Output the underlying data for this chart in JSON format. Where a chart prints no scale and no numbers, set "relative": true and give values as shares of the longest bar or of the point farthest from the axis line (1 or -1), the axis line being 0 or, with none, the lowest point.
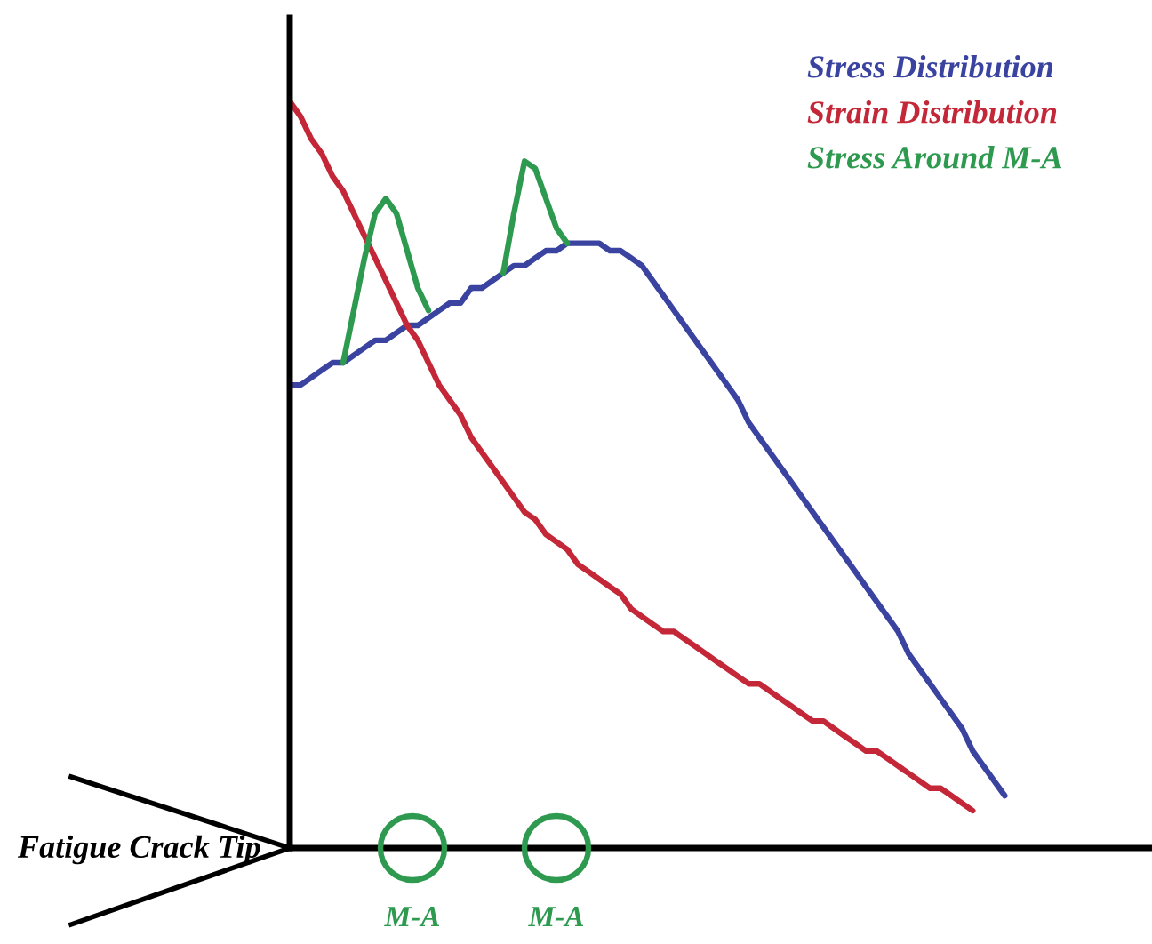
{
  "chart_data": {
    "type": "line",
    "relative": true,
    "legend": "top right",
    "categories": [
      null,
      null,
      null,
      null,
      null,
      null,
      null,
      null,
      null,
      null,
      null,
      null,
      null,
      null,
      null,
      null,
      null,
      null,
      null,
      null,
      null,
      null,
      null,
      null,
      null,
      null,
      null,
      null,
      null,
      null,
      null,
      null,
      null,
      null,
      null,
      null,
      null,
      null,
      null,
      null,
      null,
      null,
      null,
      null,
      null,
      null,
      null,
      null,
      null,
      null,
      null,
      null,
      null,
      null,
      null,
      null,
      null,
      null,
      null,
      null,
      null,
      null,
      null,
      null,
      null,
      null,
      null,
      null,
      null,
      null,
      null,
      null,
      null,
      null,
      null,
      null,
      null,
      null,
      null,
      null,
      null
    ],
    "series": [
      {
        "name": "Stress Distribution",
        "color": "#3a44a0",
        "values": [
          0.62,
          0.62,
          0.63,
          0.64,
          0.65,
          0.65,
          0.66,
          0.67,
          0.68,
          0.68,
          0.69,
          0.7,
          0.7,
          0.71,
          0.72,
          0.73,
          0.73,
          0.75,
          0.75,
          0.76,
          0.77,
          0.78,
          0.78,
          0.79,
          0.8,
          0.8,
          0.81,
          0.81,
          0.81,
          0.81,
          0.8,
          0.8,
          0.79,
          0.78,
          0.76,
          0.74,
          0.72,
          0.7,
          0.68,
          0.66,
          0.64,
          0.62,
          0.6,
          0.57,
          0.55,
          0.53,
          0.51,
          0.49,
          0.47,
          0.45,
          0.43,
          0.41,
          0.39,
          0.37,
          0.35,
          0.33,
          0.31,
          0.29,
          0.26,
          0.24,
          0.22,
          0.2,
          0.18,
          0.16,
          0.13,
          0.11,
          0.09,
          0.07,
          null,
          null,
          null,
          null,
          null,
          null,
          null,
          null,
          null,
          null,
          null,
          null,
          null
        ]
      },
      {
        "name": "Strain Distribution",
        "color": "#c42838",
        "values": [
          1.0,
          0.98,
          0.95,
          0.93,
          0.9,
          0.88,
          0.85,
          0.82,
          0.79,
          0.76,
          0.73,
          0.7,
          0.68,
          0.65,
          0.62,
          0.6,
          0.58,
          0.55,
          0.53,
          0.51,
          0.49,
          0.47,
          0.45,
          0.44,
          0.42,
          0.41,
          0.4,
          0.38,
          0.37,
          0.36,
          0.35,
          0.34,
          0.32,
          0.31,
          0.3,
          0.29,
          0.29,
          0.28,
          0.27,
          0.26,
          0.25,
          0.24,
          0.23,
          0.22,
          0.22,
          0.21,
          0.2,
          0.19,
          0.18,
          0.17,
          0.17,
          0.16,
          0.15,
          0.14,
          0.13,
          0.13,
          0.12,
          0.11,
          0.1,
          0.09,
          0.08,
          0.08,
          0.07,
          0.06,
          0.05,
          null,
          null,
          null,
          null,
          null,
          null,
          null,
          null,
          null,
          null,
          null,
          null,
          null,
          null,
          null,
          null
        ]
      },
      {
        "name": "Stress Around M-A",
        "color": "#2e9a50",
        "values": [
          null,
          null,
          null,
          null,
          null,
          0.65,
          0.72,
          0.79,
          0.85,
          0.87,
          0.85,
          0.8,
          0.75,
          0.72,
          null,
          null,
          null,
          null,
          null,
          null,
          0.77,
          0.85,
          0.92,
          0.91,
          0.87,
          0.83,
          0.81,
          null,
          null,
          null,
          null,
          null,
          null,
          null,
          null,
          null,
          null,
          null,
          null,
          null,
          null,
          null,
          null,
          null,
          null,
          null,
          null,
          null,
          null,
          null,
          null,
          null,
          null,
          null,
          null,
          null,
          null,
          null,
          null,
          null,
          null,
          null,
          null,
          null,
          null,
          null,
          null,
          null,
          null,
          null,
          null,
          null,
          null,
          null,
          null,
          null,
          null,
          null,
          null,
          null,
          null
        ]
      }
    ],
    "annotations": [
      "Fatigue Crack Tip",
      "M-A",
      "M-A"
    ]
  }
}
